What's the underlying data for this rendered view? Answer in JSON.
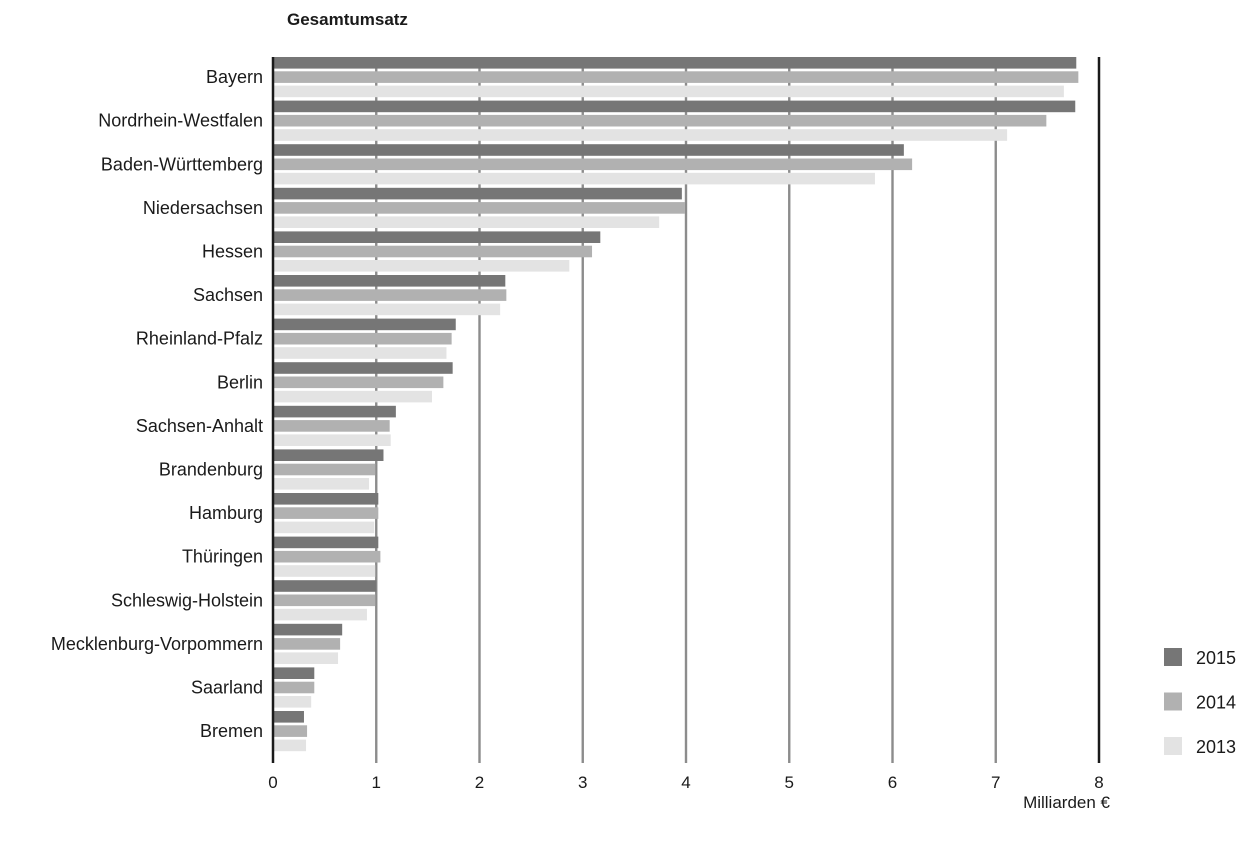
{
  "chart_data": {
    "type": "bar",
    "orientation": "horizontal",
    "title": "Gesamtumsatz",
    "xlabel": "Milliarden €",
    "ylabel": "",
    "xlim": [
      0,
      8
    ],
    "xticks": [
      "0",
      "1",
      "2",
      "3",
      "4",
      "5",
      "6",
      "7",
      "8"
    ],
    "grid": true,
    "legend_position": "bottom-right",
    "categories": [
      "Bayern",
      "Nordrhein-Westfalen",
      "Baden-Württemberg",
      "Niedersachsen",
      "Hessen",
      "Sachsen",
      "Rheinland-Pfalz",
      "Berlin",
      "Sachsen-Anhalt",
      "Brandenburg",
      "Hamburg",
      "Thüringen",
      "Schleswig-Holstein",
      "Mecklenburg-Vorpommern",
      "Saarland",
      "Bremen"
    ],
    "series": [
      {
        "name": "2015",
        "color": "#767676",
        "values": [
          7.78,
          7.77,
          6.11,
          3.96,
          3.17,
          2.25,
          1.77,
          1.74,
          1.19,
          1.07,
          1.02,
          1.02,
          1.0,
          0.67,
          0.4,
          0.3
        ]
      },
      {
        "name": "2014",
        "color": "#b1b1b1",
        "values": [
          7.8,
          7.49,
          6.19,
          3.99,
          3.09,
          2.26,
          1.73,
          1.65,
          1.13,
          0.99,
          1.02,
          1.04,
          0.99,
          0.65,
          0.4,
          0.33
        ]
      },
      {
        "name": "2013",
        "color": "#e3e3e3",
        "values": [
          7.66,
          7.11,
          5.83,
          3.74,
          2.87,
          2.2,
          1.68,
          1.54,
          1.14,
          0.93,
          0.98,
          0.99,
          0.91,
          0.63,
          0.37,
          0.32
        ]
      }
    ]
  }
}
